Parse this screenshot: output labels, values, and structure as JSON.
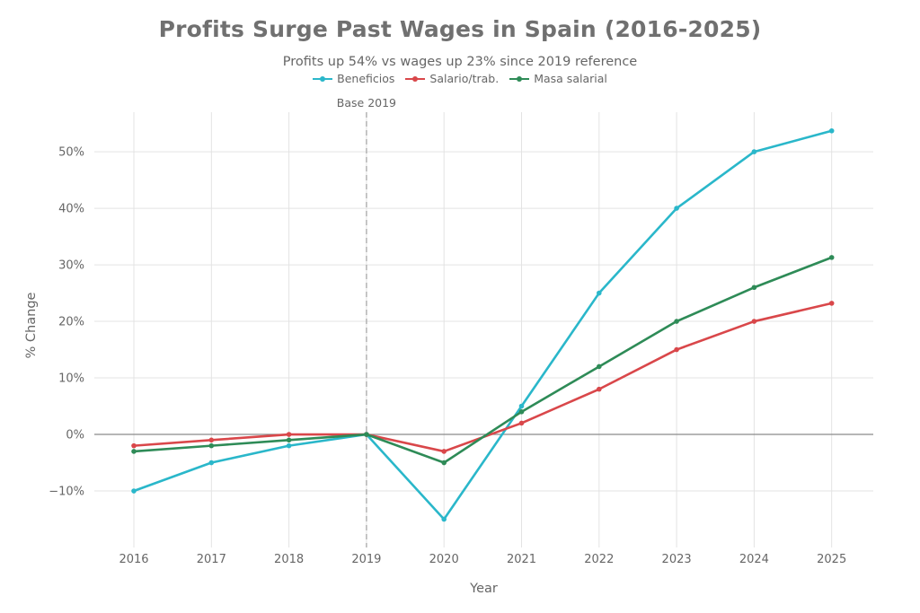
{
  "chart_data": {
    "type": "line",
    "title": "Profits Surge Past Wages in Spain (2016-2025)",
    "subtitle": "Profits up 54% vs wages up 23% since 2019 reference",
    "xlabel": "Year",
    "ylabel": "% Change",
    "x": [
      "2016",
      "2017",
      "2018",
      "2019",
      "2020",
      "2021",
      "2022",
      "2023",
      "2024",
      "2025"
    ],
    "ylim": [
      -20,
      57
    ],
    "yticks": [
      -10,
      0,
      10,
      20,
      30,
      40,
      50
    ],
    "ytick_labels": [
      "−10%",
      "0%",
      "10%",
      "20%",
      "30%",
      "40%",
      "50%"
    ],
    "grid": true,
    "legend_position": "top",
    "reference_line": {
      "x": "2019",
      "label": "Base 2019"
    },
    "series": [
      {
        "name": "Beneficios",
        "color": "#2ab7ca",
        "values": [
          -10,
          -5,
          -2,
          0,
          -15,
          5,
          25,
          40,
          50,
          53.7
        ]
      },
      {
        "name": "Salario/trab.",
        "color": "#d9474a",
        "values": [
          -2,
          -1,
          0,
          0,
          -3,
          2,
          8,
          15,
          20,
          23.2
        ]
      },
      {
        "name": "Masa salarial",
        "color": "#2e8b57",
        "values": [
          -3,
          -2,
          -1,
          0,
          -5,
          4,
          12,
          20,
          26,
          31.3
        ]
      }
    ]
  }
}
